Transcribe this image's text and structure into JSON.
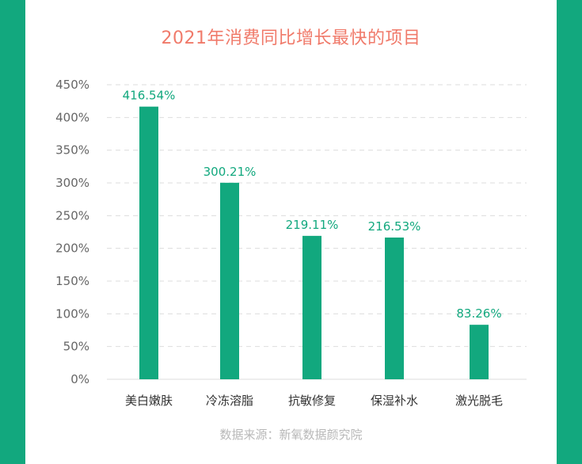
{
  "colors": {
    "accent": "#12a87e",
    "title": "#f07a6a",
    "axis_text": "#666666",
    "label_text": "#333333",
    "grid": "#dddddd",
    "source": "#b8b8b8"
  },
  "chart_data": {
    "type": "bar",
    "title": "2021年消费同比增长最快的项目",
    "categories": [
      "美白嫩肤",
      "冷冻溶脂",
      "抗敏修复",
      "保湿补水",
      "激光脱毛"
    ],
    "values": [
      416.54,
      300.21,
      219.11,
      216.53,
      83.26
    ],
    "value_labels": [
      "416.54%",
      "300.21%",
      "219.11%",
      "216.53%",
      "83.26%"
    ],
    "yticks": [
      "0%",
      "50%",
      "100%",
      "150%",
      "200%",
      "250%",
      "300%",
      "350%",
      "400%",
      "450%"
    ],
    "ylim": [
      0,
      450
    ],
    "grid": true,
    "gridline_style": "dashed",
    "source": "数据来源：新氧数据颜究院"
  }
}
